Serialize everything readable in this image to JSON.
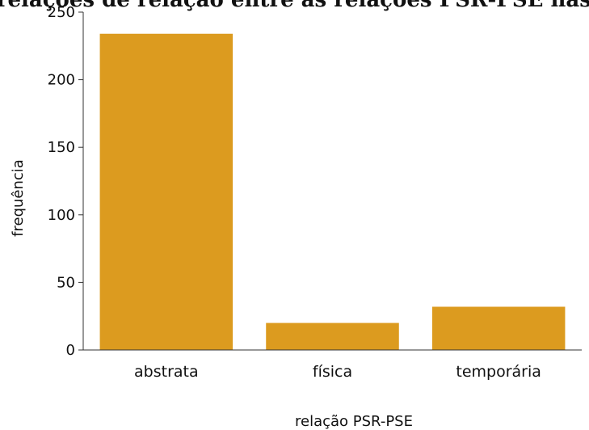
{
  "chart_data": {
    "type": "bar",
    "title": "…gem das relações de relação entre as relações PSR-PSE nas relações…",
    "categories": [
      "abstrata",
      "física",
      "temporária"
    ],
    "values": [
      234,
      20,
      32
    ],
    "xlabel": "relação PSR-PSE",
    "ylabel": "frequência",
    "ylim": [
      0,
      250
    ],
    "yticks": [
      0,
      50,
      100,
      150,
      200,
      250
    ],
    "bar_color": "#DC9B1F",
    "grid": false,
    "legend": "none"
  }
}
